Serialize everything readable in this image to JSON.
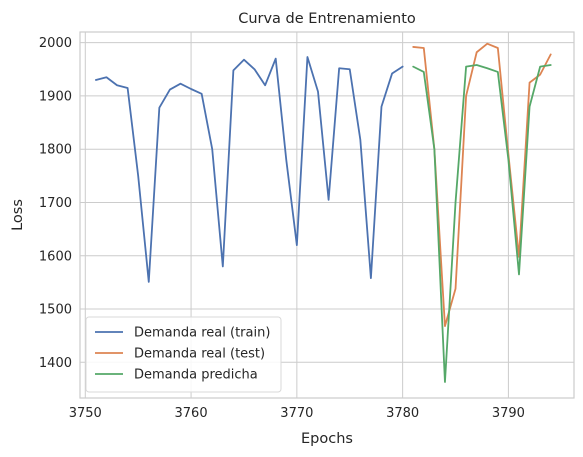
{
  "chart_data": {
    "type": "line",
    "title": "Curva de Entrenamiento",
    "xlabel": "Epochs",
    "ylabel": "Loss",
    "xlim": [
      3749.5,
      3796.2
    ],
    "ylim": [
      1333,
      2020
    ],
    "xticks": [
      3750,
      3760,
      3770,
      3780,
      3790
    ],
    "yticks": [
      1400,
      1500,
      1600,
      1700,
      1800,
      1900,
      2000
    ],
    "grid": true,
    "legend_position": "lower-left",
    "series": [
      {
        "name": "Demanda real (train)",
        "color": "#4c72b0",
        "x": [
          3751,
          3752,
          3753,
          3754,
          3755,
          3756,
          3757,
          3758,
          3759,
          3760,
          3761,
          3762,
          3763,
          3764,
          3765,
          3766,
          3767,
          3768,
          3769,
          3770,
          3771,
          3772,
          3773,
          3774,
          3775,
          3776,
          3777,
          3778,
          3779,
          3780
        ],
        "y": [
          1930,
          1935,
          1920,
          1915,
          1750,
          1551,
          1878,
          1912,
          1923,
          1913,
          1904,
          1800,
          1580,
          1948,
          1968,
          1950,
          1920,
          1970,
          1780,
          1620,
          1973,
          1908,
          1705,
          1952,
          1950,
          1818,
          1558,
          1880,
          1942,
          1955
        ]
      },
      {
        "name": "Demanda real (test)",
        "color": "#dd8452",
        "x": [
          3781,
          3782,
          3783,
          3784,
          3785,
          3786,
          3787,
          3788,
          3789,
          3790,
          3791,
          3792,
          3793,
          3794
        ],
        "y": [
          1992,
          1990,
          1800,
          1468,
          1538,
          1900,
          1982,
          1998,
          1990,
          1790,
          1598,
          1925,
          1940,
          1978
        ]
      },
      {
        "name": "Demanda predicha",
        "color": "#55a868",
        "x": [
          3781,
          3782,
          3783,
          3784,
          3785,
          3786,
          3787,
          3788,
          3789,
          3790,
          3791,
          3792,
          3793,
          3794
        ],
        "y": [
          1955,
          1945,
          1800,
          1363,
          1700,
          1955,
          1958,
          1952,
          1945,
          1780,
          1565,
          1880,
          1955,
          1958
        ]
      }
    ]
  }
}
